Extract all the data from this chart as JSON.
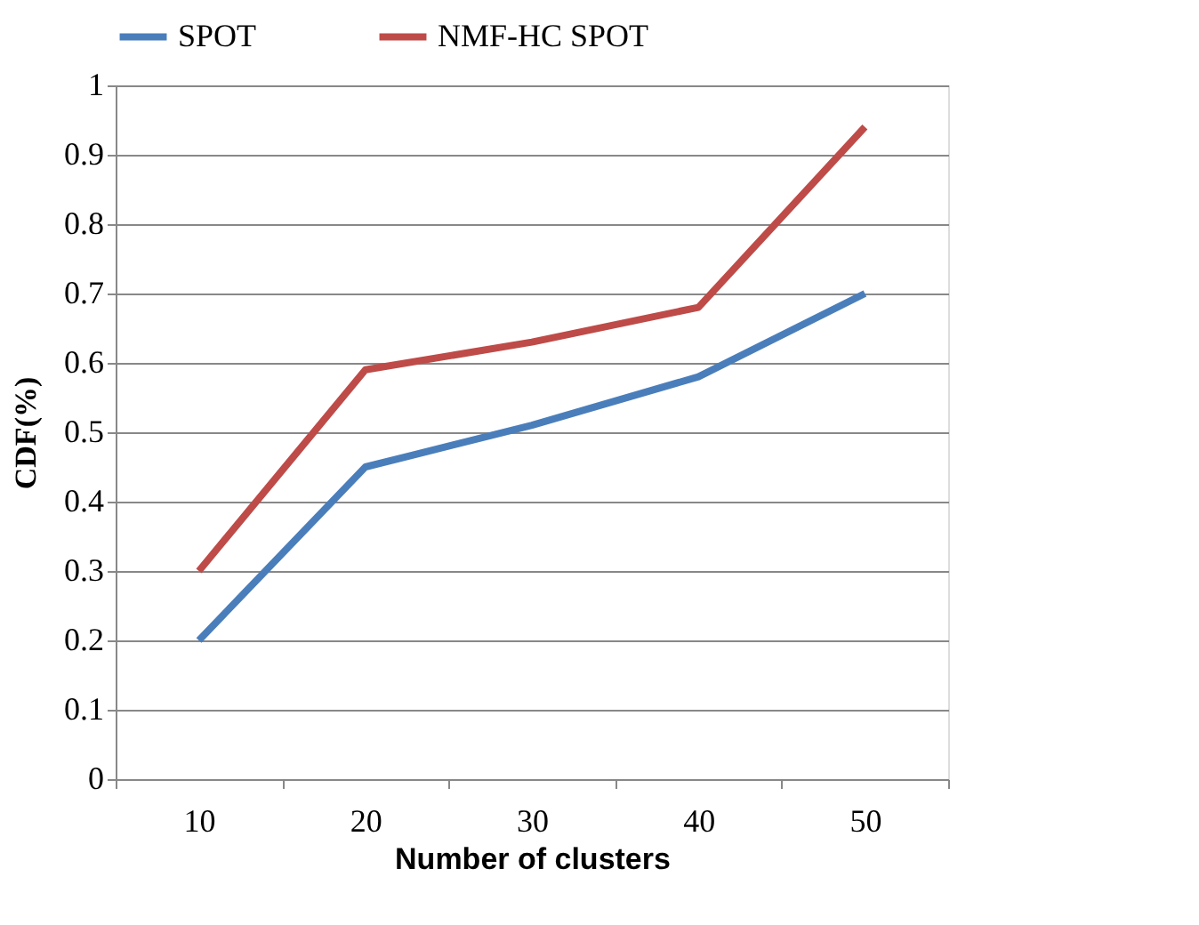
{
  "chart_data": {
    "type": "line",
    "xlabel": "Number of clusters",
    "ylabel": "CDF(%)",
    "categories": [
      "10",
      "20",
      "30",
      "40",
      "50"
    ],
    "series": [
      {
        "name": "SPOT",
        "color": "#4a7ebb",
        "values": [
          0.2,
          0.45,
          0.51,
          0.58,
          0.7
        ]
      },
      {
        "name": "NMF-HC SPOT",
        "color": "#be4b48",
        "values": [
          0.3,
          0.59,
          0.63,
          0.68,
          0.94
        ]
      }
    ],
    "ylim": [
      0,
      1
    ],
    "yticks": [
      0,
      0.1,
      0.2,
      0.3,
      0.4,
      0.5,
      0.6,
      0.7,
      0.8,
      0.9,
      1
    ],
    "grid": "y",
    "legend": "top",
    "marker": "none",
    "line_style": "solid"
  }
}
